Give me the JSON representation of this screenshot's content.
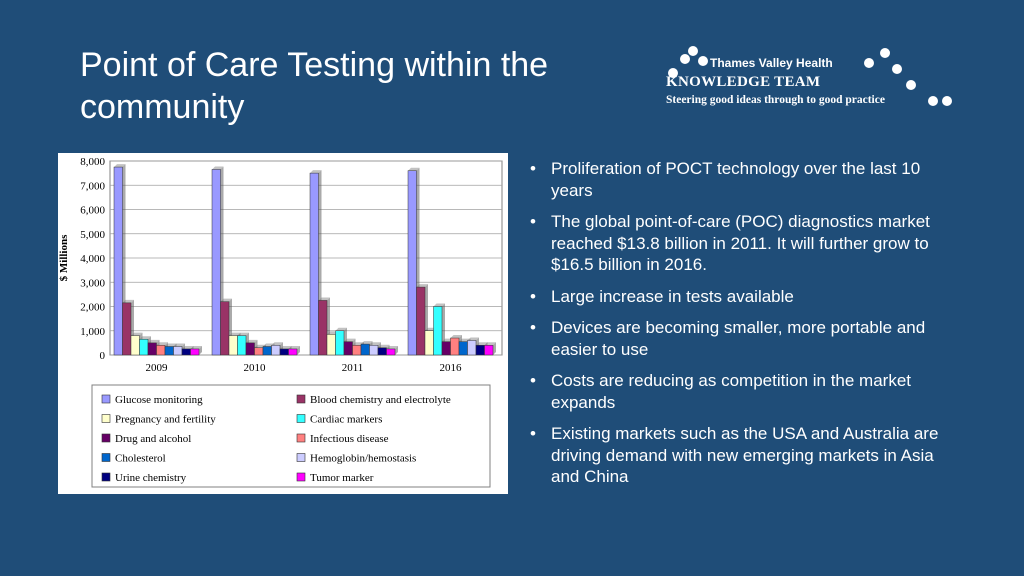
{
  "slide": {
    "title": "Point of Care Testing within the community"
  },
  "logo": {
    "org": "Thames Valley Health",
    "team": "KNOWLEDGE TEAM",
    "tagline": "Steering good ideas through to good practice"
  },
  "bullets": [
    "Proliferation of POCT technology over the last 10 years",
    "The global point-of-care (POC) diagnostics market reached $13.8 billion in 2011. It will further grow to $16.5 billion in 2016.",
    "Large increase in tests available",
    "Devices are becoming smaller, more portable and easier to use",
    "Costs are reducing as competition in the market expands",
    "Existing markets such as the USA and Australia are driving demand with new emerging markets in Asia and China"
  ],
  "chart_data": {
    "type": "bar",
    "title": "",
    "xlabel": "",
    "ylabel": "$ Millions",
    "ylim": [
      0,
      8000
    ],
    "yticks": [
      "0",
      "1,000",
      "2,000",
      "3,000",
      "4,000",
      "5,000",
      "6,000",
      "7,000",
      "8,000"
    ],
    "ytick_values": [
      0,
      1000,
      2000,
      3000,
      4000,
      5000,
      6000,
      7000,
      8000
    ],
    "grid": true,
    "legend_position": "bottom",
    "categories": [
      "2009",
      "2010",
      "2011",
      "2016"
    ],
    "series": [
      {
        "name": "Glucose monitoring",
        "color": "#9999ff",
        "values": [
          7750,
          7650,
          7500,
          7600
        ]
      },
      {
        "name": "Blood chemistry and electrolyte",
        "color": "#993366",
        "values": [
          2150,
          2200,
          2250,
          2800
        ]
      },
      {
        "name": "Pregnancy and fertility",
        "color": "#ffffcc",
        "values": [
          800,
          800,
          850,
          1000
        ]
      },
      {
        "name": "Cardiac markers",
        "color": "#33ffff",
        "values": [
          650,
          800,
          1000,
          2000
        ]
      },
      {
        "name": "Drug and alcohol",
        "color": "#660066",
        "values": [
          500,
          500,
          550,
          550
        ]
      },
      {
        "name": "Infectious disease",
        "color": "#ff8080",
        "values": [
          400,
          300,
          400,
          700
        ]
      },
      {
        "name": "Cholesterol",
        "color": "#0066cc",
        "values": [
          350,
          350,
          450,
          550
        ]
      },
      {
        "name": "Hemoglobin/hemostasis",
        "color": "#ccccff",
        "values": [
          350,
          400,
          400,
          600
        ]
      },
      {
        "name": "Urine chemistry",
        "color": "#000080",
        "values": [
          250,
          250,
          300,
          400
        ]
      },
      {
        "name": "Tumor marker",
        "color": "#ff00ff",
        "values": [
          250,
          250,
          250,
          400
        ]
      }
    ]
  }
}
